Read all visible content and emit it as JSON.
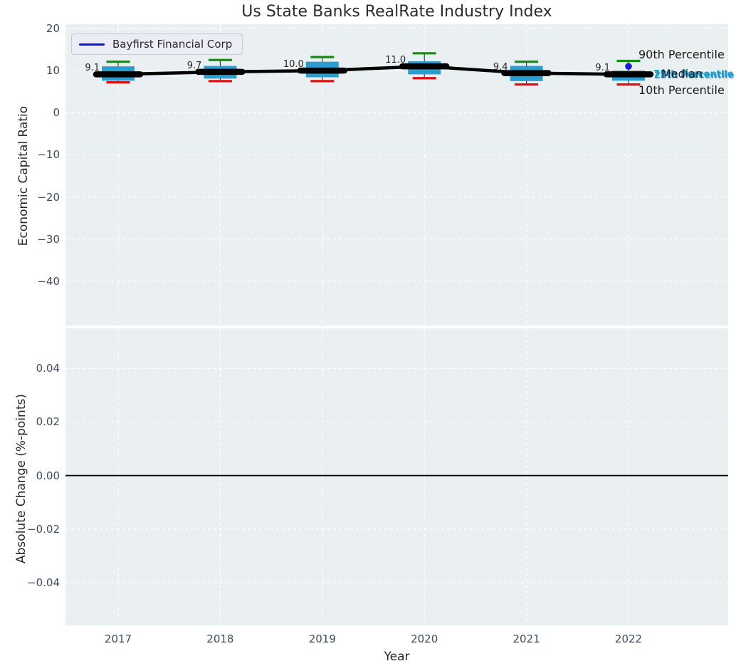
{
  "title": "Us State Banks RealRate Industry Index",
  "legend": {
    "label": "Bayfirst Financial Corp"
  },
  "annotations": {
    "p90_label": "90th Percentile",
    "p75_label": "75th Percentile",
    "median_label": "Median",
    "p25_label": "25th Percentile",
    "p10_label": "10th Percentile"
  },
  "colors": {
    "axes_bg": "#eaeff1",
    "grid": "#ffffff",
    "box_fill": "#2a9dd1",
    "cap_top_green": "#0f900f",
    "cap_bottom_red": "#dd1111",
    "median_black": "#000000",
    "company_blue": "#1420d2",
    "percentile_text_cyan": "#1f9acd",
    "tick_text": "#3d4c63"
  },
  "x_axis": {
    "label": "Year",
    "categories": [
      "2017",
      "2018",
      "2019",
      "2020",
      "2021",
      "2022"
    ]
  },
  "chart_data": [
    {
      "type": "boxplot",
      "title": "Us State Banks RealRate Industry Index",
      "ylabel": "Economic Capital Ratio",
      "xlabel": "Year",
      "categories": [
        2017,
        2018,
        2019,
        2020,
        2021,
        2022
      ],
      "ylim": [
        -50.5,
        21
      ],
      "ytick_values": [
        20,
        10,
        0,
        -10,
        -20,
        -30,
        -40
      ],
      "ytick_labels": [
        "20",
        "10",
        "0",
        "−10",
        "−20",
        "−30",
        "−40"
      ],
      "grid": true,
      "legend_position": "upper left",
      "series": [
        {
          "name": "90th Percentile",
          "values": [
            12.1,
            12.5,
            13.2,
            14.1,
            12.1,
            12.3
          ]
        },
        {
          "name": "75th Percentile",
          "values": [
            11.0,
            11.1,
            12.1,
            12.2,
            11.1,
            10.0
          ]
        },
        {
          "name": "Median",
          "values": [
            9.1,
            9.7,
            10.0,
            11.0,
            9.4,
            9.1
          ]
        },
        {
          "name": "25th Percentile",
          "values": [
            7.6,
            8.1,
            8.4,
            9.1,
            7.5,
            7.6
          ]
        },
        {
          "name": "10th Percentile",
          "values": [
            7.2,
            7.5,
            7.5,
            8.2,
            6.7,
            6.7
          ]
        },
        {
          "name": "Bayfirst Financial Corp",
          "values": [
            null,
            null,
            null,
            null,
            null,
            11.0
          ]
        }
      ],
      "median_labels": [
        "9.1",
        "9.7",
        "10.0",
        "11.0",
        "9.4",
        "9.1"
      ]
    },
    {
      "type": "line",
      "ylabel": "Absolute Change (%-points)",
      "ylim": [
        -0.056,
        0.055
      ],
      "ytick_values": [
        0.04,
        0.02,
        0.0,
        -0.02,
        -0.04
      ],
      "ytick_labels": [
        "0.04",
        "0.02",
        "0.00",
        "−0.02",
        "−0.04"
      ],
      "grid": true,
      "zero_line": 0.0,
      "series": []
    }
  ]
}
